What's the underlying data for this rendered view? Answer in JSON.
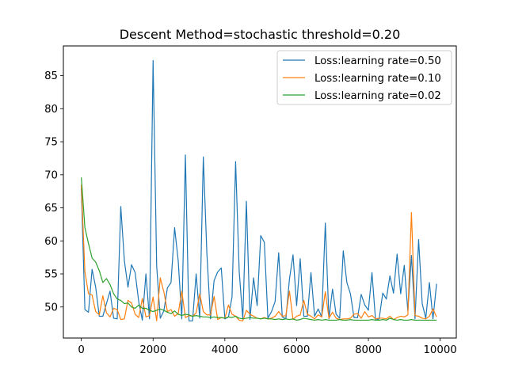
{
  "chart_data": {
    "type": "line",
    "title": "Descent Method=stochastic threshold=0.20",
    "xlabel": "",
    "ylabel": "",
    "xlim": [
      -500,
      10450
    ],
    "ylim": [
      45.3,
      89.5
    ],
    "xticks": [
      0,
      2000,
      4000,
      6000,
      8000,
      10000
    ],
    "yticks": [
      50,
      55,
      60,
      65,
      70,
      75,
      80,
      85
    ],
    "grid": false,
    "legend_position": "upper right",
    "x": [
      0,
      100,
      200,
      300,
      400,
      500,
      600,
      700,
      800,
      900,
      1000,
      1100,
      1200,
      1300,
      1400,
      1500,
      1600,
      1700,
      1800,
      1900,
      2000,
      2100,
      2200,
      2300,
      2400,
      2500,
      2600,
      2700,
      2800,
      2900,
      3000,
      3100,
      3200,
      3300,
      3400,
      3500,
      3600,
      3700,
      3800,
      3900,
      4000,
      4100,
      4200,
      4300,
      4400,
      4500,
      4600,
      4700,
      4800,
      4900,
      5000,
      5100,
      5200,
      5300,
      5400,
      5500,
      5600,
      5700,
      5800,
      5900,
      6000,
      6100,
      6200,
      6300,
      6400,
      6500,
      6600,
      6700,
      6800,
      6900,
      7000,
      7100,
      7200,
      7300,
      7400,
      7500,
      7600,
      7700,
      7800,
      7900,
      8000,
      8100,
      8200,
      8300,
      8400,
      8500,
      8600,
      8700,
      8800,
      8900,
      9000,
      9100,
      9200,
      9300,
      9400,
      9500,
      9600,
      9700,
      9800,
      9900
    ],
    "series": [
      {
        "name": "Loss:learning rate=0.50",
        "color": "#1f77b4",
        "values": [
          68.0,
          49.6,
          49.2,
          55.7,
          53.0,
          48.6,
          48.6,
          50.5,
          52.4,
          48.3,
          48.2,
          65.2,
          57.0,
          53.0,
          56.4,
          55.2,
          50.8,
          48.0,
          55.0,
          48.2,
          87.3,
          56.2,
          48.3,
          49.4,
          52.9,
          53.7,
          62.0,
          57.0,
          48.2,
          73.0,
          47.9,
          47.9,
          55.0,
          48.3,
          72.7,
          58.0,
          48.2,
          54.0,
          55.3,
          55.9,
          48.2,
          48.5,
          51.5,
          72.0,
          55.4,
          48.2,
          66.0,
          48.1,
          54.4,
          50.2,
          60.8,
          59.8,
          48.3,
          49.3,
          50.8,
          58.2,
          48.5,
          48.2,
          54.2,
          57.9,
          50.2,
          57.3,
          48.6,
          48.6,
          55.2,
          48.6,
          49.7,
          48.5,
          62.7,
          48.2,
          52.7,
          48.9,
          48.3,
          58.5,
          53.7,
          52.0,
          48.4,
          48.4,
          51.9,
          50.3,
          49.5,
          55.2,
          48.0,
          48.2,
          52.1,
          51.2,
          54.7,
          52.1,
          58.0,
          52.0,
          56.3,
          49.4,
          57.8,
          48.2,
          60.2,
          50.5,
          48.3,
          53.7,
          48.2,
          53.5
        ]
      },
      {
        "name": "Loss:learning rate=0.10",
        "color": "#ff7f0e",
        "values": [
          68.5,
          55.3,
          52.0,
          51.8,
          49.3,
          48.8,
          51.7,
          49.1,
          48.5,
          49.8,
          49.6,
          48.1,
          48.2,
          51.0,
          50.6,
          48.9,
          48.4,
          51.3,
          48.5,
          48.7,
          51.5,
          47.9,
          54.4,
          52.3,
          49.3,
          49.6,
          48.6,
          49.0,
          52.4,
          48.4,
          48.7,
          48.6,
          49.1,
          52.0,
          49.3,
          48.8,
          48.8,
          51.6,
          48.1,
          48.4,
          48.3,
          50.3,
          48.9,
          48.6,
          48.0,
          47.9,
          49.5,
          48.9,
          48.6,
          48.3,
          48.2,
          48.4,
          48.2,
          48.3,
          48.6,
          49.3,
          48.6,
          48.7,
          52.4,
          48.1,
          48.6,
          48.8,
          51.0,
          48.9,
          48.6,
          48.2,
          48.8,
          48.5,
          52.3,
          48.3,
          49.2,
          48.3,
          48.1,
          48.2,
          48.2,
          48.3,
          48.9,
          49.0,
          48.3,
          49.3,
          48.5,
          48.7,
          48.2,
          48.3,
          48.3,
          48.2,
          48.6,
          48.1,
          48.4,
          48.6,
          48.5,
          48.8,
          64.3,
          48.7,
          48.6,
          48.3,
          48.2,
          48.6,
          49.7,
          48.5
        ]
      },
      {
        "name": "Loss:learning rate=0.02",
        "color": "#2ca02c",
        "values": [
          69.6,
          62.0,
          59.6,
          57.4,
          56.8,
          55.5,
          53.7,
          54.3,
          53.4,
          52.0,
          51.2,
          51.0,
          50.5,
          50.6,
          50.0,
          49.8,
          50.3,
          49.8,
          49.8,
          49.5,
          49.3,
          49.5,
          49.7,
          49.5,
          49.2,
          49.0,
          49.4,
          48.9,
          48.7,
          48.9,
          48.8,
          48.6,
          48.7,
          48.6,
          48.5,
          48.5,
          48.4,
          48.5,
          48.4,
          48.4,
          48.3,
          48.5,
          48.4,
          48.6,
          48.3,
          48.2,
          48.3,
          48.4,
          48.3,
          48.3,
          48.2,
          48.3,
          48.2,
          48.2,
          48.1,
          48.2,
          48.1,
          48.2,
          48.1,
          48.2,
          48.0,
          48.1,
          48.3,
          48.2,
          48.1,
          48.0,
          48.1,
          48.0,
          48.1,
          48.0,
          48.0,
          48.0,
          48.1,
          48.0,
          48.0,
          48.1,
          48.0,
          48.0,
          48.0,
          48.0,
          48.0,
          48.1,
          48.0,
          48.0,
          48.1,
          48.0,
          48.3,
          48.1,
          48.0,
          48.1,
          48.0,
          48.0,
          48.1,
          48.0,
          48.0,
          48.0,
          48.0,
          48.0,
          48.0,
          48.0
        ]
      }
    ]
  }
}
